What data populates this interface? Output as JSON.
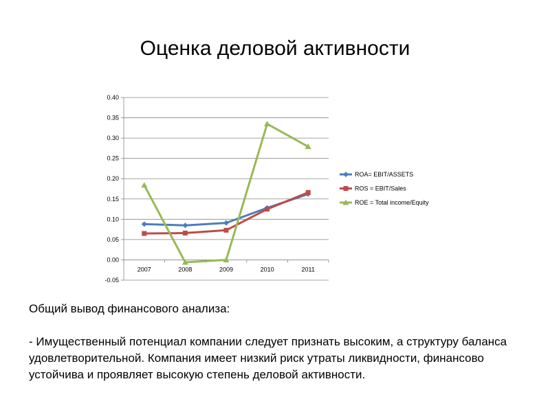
{
  "slide": {
    "title": "Оценка деловой активности"
  },
  "summary": {
    "heading": "Общий вывод финансового анализа:",
    "text": "-  Имущественный потенциал компании следует признать высоким, а структуру баланса удовлетворительной. Компания имеет низкий риск утраты ликвидности, финансово устойчива и проявляет высокую степень деловой активности."
  },
  "chart_data": {
    "type": "line",
    "title": "",
    "xlabel": "",
    "ylabel": "",
    "categories": [
      "2007",
      "2008",
      "2009",
      "2010",
      "2011"
    ],
    "ylim": [
      -0.05,
      0.4
    ],
    "yticks": [
      "0.40",
      "0.35",
      "0.30",
      "0.25",
      "0.20",
      "0.15",
      "0.10",
      "0.05",
      "0.00",
      "-0.05"
    ],
    "grid": true,
    "legend_position": "right",
    "series": [
      {
        "name": "ROA= EBIT/ASSETS",
        "color": "#4a7ebb",
        "marker": "diamond",
        "values": [
          0.088,
          0.085,
          0.091,
          0.128,
          0.162
        ]
      },
      {
        "name": "ROS = EBIT/Sales",
        "color": "#be4b48",
        "marker": "square",
        "values": [
          0.065,
          0.066,
          0.073,
          0.125,
          0.166
        ]
      },
      {
        "name": "ROE = Total income/Equity",
        "color": "#98b954",
        "marker": "triangle",
        "values": [
          0.184,
          -0.006,
          0.0,
          0.335,
          0.279
        ]
      }
    ]
  }
}
